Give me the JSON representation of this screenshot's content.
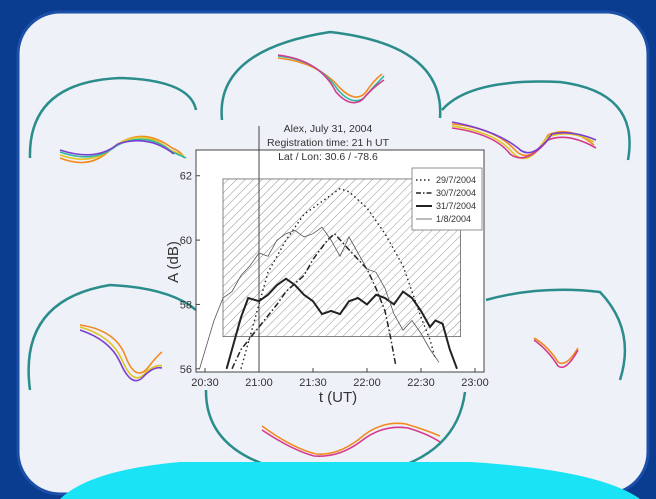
{
  "chart_data": {
    "type": "line",
    "title_lines": [
      "Alex, July 31, 2004",
      "Registration time: 21 h UT",
      "Lat / Lon:  30.6 / -78.6"
    ],
    "xlabel": "t (UT)",
    "ylabel": "A (dB)",
    "x_ticks": [
      "20:30",
      "21:00",
      "21:30",
      "22:00",
      "22:30",
      "23:00"
    ],
    "x_tick_minutes": [
      0,
      30,
      60,
      90,
      120,
      150
    ],
    "y_ticks": [
      56,
      58,
      60,
      62
    ],
    "xlim_minutes_after_2030": [
      -5,
      155
    ],
    "ylim": [
      55.9,
      62.8
    ],
    "marker_vertical_line": "21:00",
    "shaded_region": {
      "x_from": "20:40",
      "x_to": "22:52",
      "y_from": 57.0,
      "y_to": 61.9
    },
    "legend_position": "top-right",
    "series": [
      {
        "name": "29/7/2004",
        "style": "dotted",
        "points": [
          [
            20,
            56
          ],
          [
            25,
            57
          ],
          [
            30,
            58
          ],
          [
            35,
            59
          ],
          [
            45,
            60
          ],
          [
            55,
            60.8
          ],
          [
            65,
            61.2
          ],
          [
            75,
            61.6
          ],
          [
            80,
            61.5
          ],
          [
            90,
            61.0
          ],
          [
            100,
            60.2
          ],
          [
            110,
            59.2
          ],
          [
            115,
            58.4
          ],
          [
            120,
            57.6
          ],
          [
            125,
            56.9
          ],
          [
            128,
            56.3
          ]
        ]
      },
      {
        "name": "30/7/2004",
        "style": "dash-dot",
        "points": [
          [
            15,
            56
          ],
          [
            20,
            56.6
          ],
          [
            30,
            57.3
          ],
          [
            40,
            58.0
          ],
          [
            45,
            58.4
          ],
          [
            55,
            58.9
          ],
          [
            60,
            59.4
          ],
          [
            68,
            60.0
          ],
          [
            72,
            60.2
          ],
          [
            80,
            59.7
          ],
          [
            90,
            59.1
          ],
          [
            95,
            58.5
          ],
          [
            100,
            57.8
          ],
          [
            103,
            57.0
          ],
          [
            106,
            56.1
          ]
        ]
      },
      {
        "name": "31/7/2004",
        "style": "solid-thick",
        "points": [
          [
            12,
            56
          ],
          [
            16,
            56.8
          ],
          [
            20,
            57.6
          ],
          [
            24,
            58.2
          ],
          [
            30,
            58.1
          ],
          [
            35,
            58.3
          ],
          [
            40,
            58.6
          ],
          [
            45,
            58.8
          ],
          [
            50,
            58.6
          ],
          [
            55,
            58.3
          ],
          [
            60,
            58.1
          ],
          [
            65,
            57.7
          ],
          [
            70,
            57.8
          ],
          [
            75,
            57.7
          ],
          [
            80,
            58.1
          ],
          [
            85,
            58.2
          ],
          [
            90,
            58.0
          ],
          [
            95,
            58.3
          ],
          [
            100,
            58.2
          ],
          [
            105,
            58.0
          ],
          [
            110,
            58.4
          ],
          [
            115,
            58.2
          ],
          [
            120,
            57.8
          ],
          [
            125,
            57.3
          ],
          [
            128,
            57.5
          ],
          [
            132,
            57.4
          ],
          [
            136,
            56.6
          ],
          [
            140,
            56.0
          ]
        ]
      },
      {
        "name": "1/8/2004",
        "style": "thin",
        "points": [
          [
            -3,
            56
          ],
          [
            5,
            57.5
          ],
          [
            10,
            58.2
          ],
          [
            15,
            58.4
          ],
          [
            20,
            58.9
          ],
          [
            25,
            59.2
          ],
          [
            30,
            59.6
          ],
          [
            35,
            59.5
          ],
          [
            40,
            60.0
          ],
          [
            45,
            60.2
          ],
          [
            50,
            60.3
          ],
          [
            55,
            60.1
          ],
          [
            60,
            60.2
          ],
          [
            65,
            60.4
          ],
          [
            70,
            60.0
          ],
          [
            75,
            59.5
          ],
          [
            80,
            60.1
          ],
          [
            85,
            59.6
          ],
          [
            90,
            59.1
          ],
          [
            95,
            59.0
          ],
          [
            100,
            58.5
          ],
          [
            105,
            57.7
          ],
          [
            110,
            57.2
          ],
          [
            115,
            57.5
          ],
          [
            120,
            57.1
          ],
          [
            125,
            56.6
          ],
          [
            130,
            56.2
          ]
        ]
      }
    ]
  },
  "colors": {
    "backdrop": "#0a3d8f",
    "card_fill": "#eef1f8",
    "card_border": "#1b4fa8",
    "arc_color": "#2b8c8c",
    "cyan_banner": "#19e3f5",
    "mini_line_colors": [
      "#f28a1e",
      "#e0c422",
      "#2fb8a0",
      "#d33a8c",
      "#7a3fd0"
    ]
  }
}
